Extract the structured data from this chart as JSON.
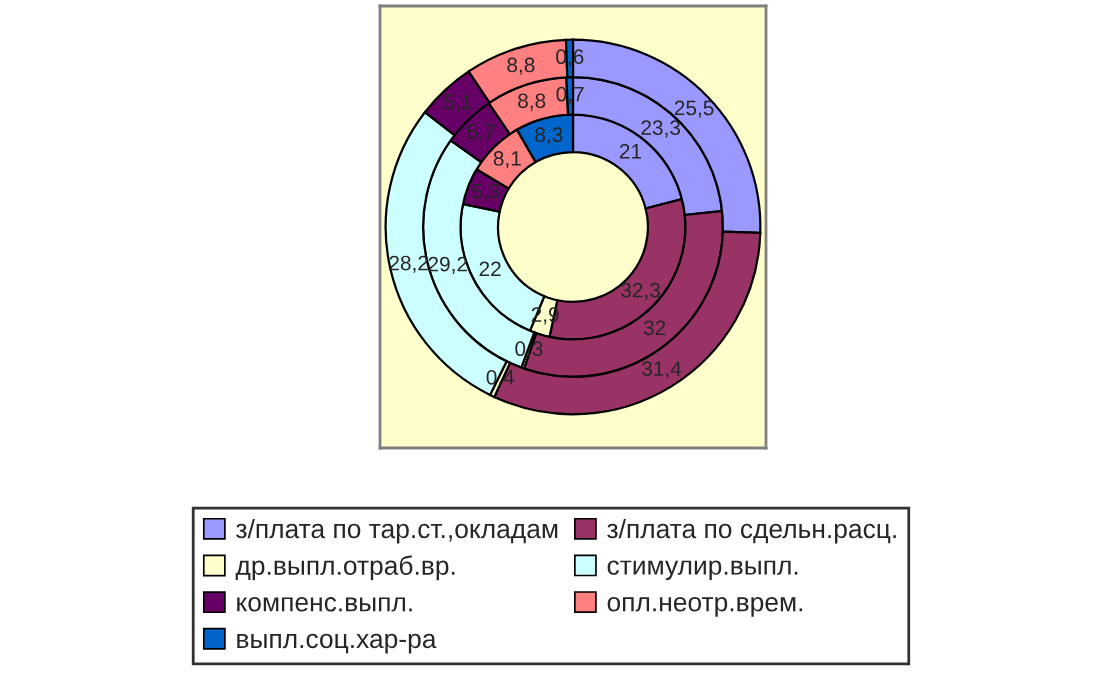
{
  "chart_data": {
    "type": "donut",
    "categories": [
      "з/плата по тар.ст.,окладам",
      "з/плата по сдельн.расц.",
      "др.выпл.отраб.вр.",
      "стимулир.выпл.",
      "компенс.выпл.",
      "опл.неотр.врем.",
      "выпл.соц.хар-ра"
    ],
    "colors": [
      "#9999ff",
      "#993366",
      "#ffffcc",
      "#ccffff",
      "#660066",
      "#ff8080",
      "#0066cc"
    ],
    "series": [
      {
        "values": [
          21,
          32.3,
          2.9,
          22,
          5.3,
          8.1,
          8.3
        ],
        "value_labels": [
          "21",
          "32,3",
          "2,9",
          "22",
          "5,3",
          "8,1",
          "8,3"
        ]
      },
      {
        "values": [
          23.3,
          32,
          0.3,
          29.2,
          5.7,
          8.8,
          0.7
        ],
        "value_labels": [
          "23,3",
          "32",
          "0,3",
          "29,2",
          "5,7",
          "8,8",
          "0,7"
        ]
      },
      {
        "values": [
          25.5,
          31.4,
          0.4,
          28.2,
          5.1,
          8.8,
          0.6
        ],
        "value_labels": [
          "25,5",
          "31,4",
          "0,4",
          "28,2",
          "5,1",
          "8,8",
          "0,6"
        ]
      }
    ],
    "legend": "bottom"
  }
}
